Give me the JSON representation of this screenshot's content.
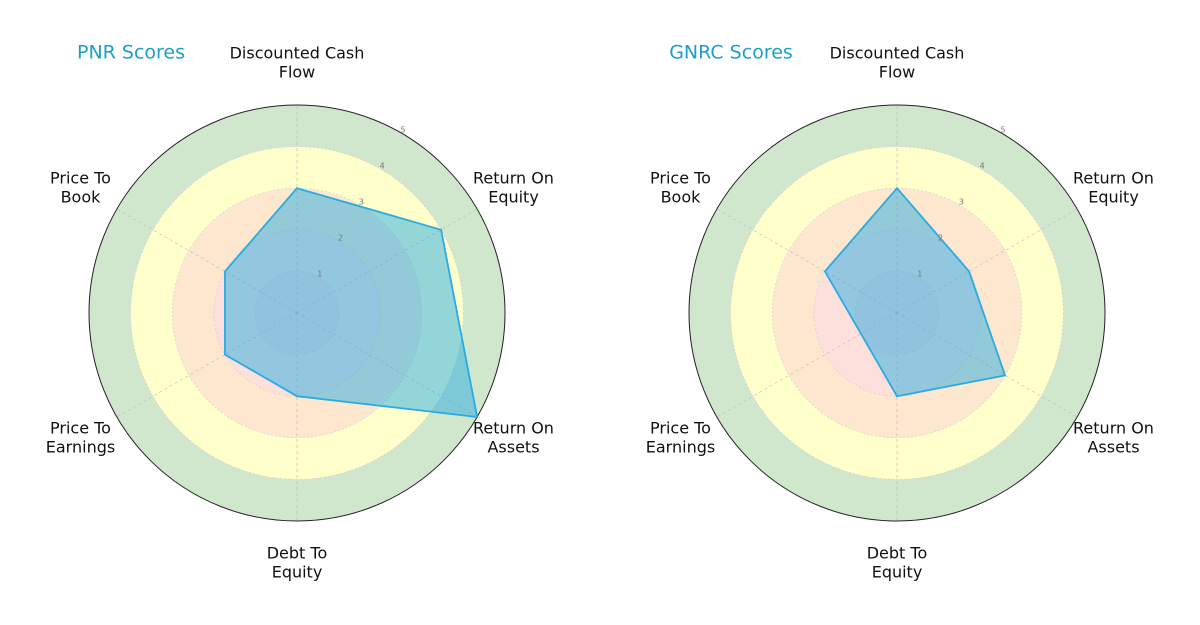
{
  "chart_data": [
    {
      "type": "radar",
      "title": "PNR Scores",
      "categories": [
        "Discounted Cash Flow",
        "Return On Equity",
        "Return On Assets",
        "Debt To Equity",
        "Price To Earnings",
        "Price To Book"
      ],
      "values": [
        3,
        4,
        5,
        2,
        2,
        2
      ],
      "color": "#29abe2",
      "rlim": [
        0,
        5
      ],
      "rticks": [
        1,
        2,
        3,
        4,
        5
      ],
      "ring_colors": [
        "#fbdada",
        "#fde0dc",
        "#fde8cf",
        "#ffffcc",
        "#d0e7cd"
      ],
      "grid": true
    },
    {
      "type": "radar",
      "title": "GNRC Scores",
      "categories": [
        "Discounted Cash Flow",
        "Return On Equity",
        "Return On Assets",
        "Debt To Equity",
        "Price To Earnings",
        "Price To Book"
      ],
      "values": [
        3,
        2,
        3,
        2,
        1,
        2
      ],
      "color": "#29abe2",
      "rlim": [
        0,
        5
      ],
      "rticks": [
        1,
        2,
        3,
        4,
        5
      ],
      "ring_colors": [
        "#fbdada",
        "#fde0dc",
        "#fde8cf",
        "#ffffcc",
        "#d0e7cd"
      ],
      "grid": true
    }
  ]
}
